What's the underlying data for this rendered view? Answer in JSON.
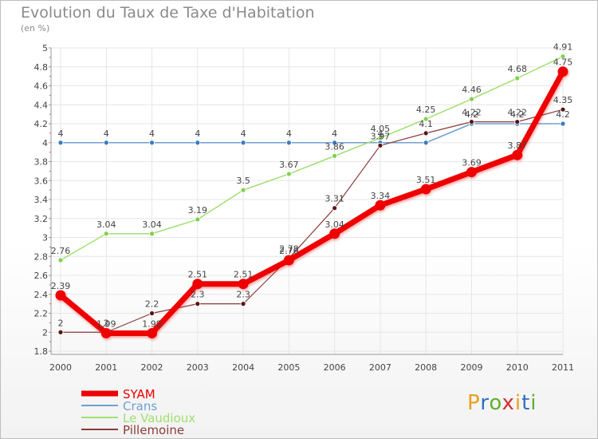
{
  "chart_data": {
    "type": "line",
    "title": "Evolution du Taux de Taxe d'Habitation",
    "subtitle": "(en %)",
    "x": [
      "2000",
      "2001",
      "2002",
      "2003",
      "2004",
      "2005",
      "2006",
      "2007",
      "2008",
      "2009",
      "2010",
      "2011"
    ],
    "ylim": [
      1.8,
      5
    ],
    "yticks": [
      "1.8",
      "2",
      "2.2",
      "2.4",
      "2.6",
      "2.8",
      "3",
      "3.2",
      "3.4",
      "3.6",
      "3.8",
      "4",
      "4.2",
      "4.4",
      "4.6",
      "4.8",
      "5"
    ],
    "grid": true,
    "legend_position": "bottom-left",
    "series": [
      {
        "name": "SYAM",
        "color": "#ee0000",
        "values": [
          2.39,
          1.99,
          1.99,
          2.51,
          2.51,
          2.76,
          3.04,
          3.34,
          3.51,
          3.69,
          3.87,
          4.75
        ],
        "labels": [
          "2.39",
          "1.99",
          "1.99",
          "2.51",
          "2.51",
          "2.76",
          "3.04",
          "3.34",
          "3.51",
          "3.69",
          "3.87",
          "4.75"
        ]
      },
      {
        "name": "Crans",
        "color": "#6fa0d0",
        "values": [
          4,
          4,
          4,
          4,
          4,
          4,
          4,
          4,
          4,
          4.2,
          4.2,
          4.2
        ],
        "labels": [
          "4",
          "4",
          "4",
          "4",
          "4",
          "4",
          "4",
          "4",
          "",
          "4.2",
          "4.2",
          "4.2"
        ]
      },
      {
        "name": "Le Vaudioux",
        "color": "#a0e070",
        "values": [
          2.76,
          3.04,
          3.04,
          3.19,
          3.5,
          3.67,
          3.86,
          4.05,
          4.25,
          4.46,
          4.68,
          4.91
        ],
        "labels": [
          "2.76",
          "3.04",
          "3.04",
          "3.19",
          "3.5",
          "3.67",
          "3.86",
          "4.05",
          "4.25",
          "4.46",
          "4.68",
          "4.91"
        ]
      },
      {
        "name": "Pillemoine",
        "color": "#8a3a3a",
        "values": [
          2,
          2,
          2.2,
          2.3,
          2.3,
          2.78,
          3.31,
          3.97,
          4.1,
          4.22,
          4.22,
          4.35
        ],
        "labels": [
          "2",
          "2",
          "2.2",
          "2.3",
          "2.3",
          "2.78",
          "3.31",
          "3.97",
          "4.1",
          "4.22",
          "4.22",
          "4.35"
        ]
      }
    ]
  },
  "logo": {
    "text": "Proxiti",
    "colors": [
      "#e8a020",
      "#3070c0",
      "#60b030",
      "#d03030",
      "#e8a020",
      "#3070c0",
      "#60b030"
    ]
  }
}
